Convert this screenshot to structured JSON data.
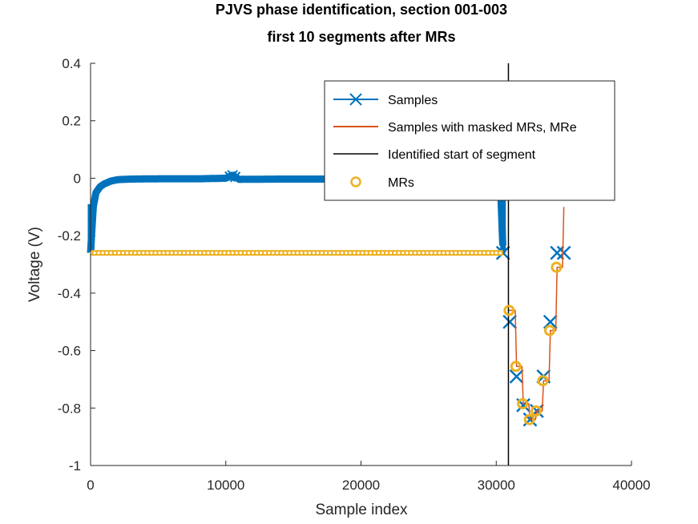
{
  "chart_data": {
    "type": "line",
    "title": [
      "PJVS phase identification, section 001-003",
      "first 10 segments after MRs"
    ],
    "xlabel": "Sample index",
    "ylabel": "Voltage (V)",
    "xlim": [
      0,
      40000
    ],
    "ylim": [
      -1,
      0.4
    ],
    "xticks": [
      0,
      10000,
      20000,
      30000,
      40000
    ],
    "xtick_labels": [
      "0",
      "10000",
      "20000",
      "30000",
      "40000"
    ],
    "yticks": [
      -1,
      -0.8,
      -0.6,
      -0.4,
      -0.2,
      0,
      0.2,
      0.4
    ],
    "ytick_labels": [
      "-1",
      "-0.8",
      "-0.6",
      "-0.4",
      "-0.2",
      "0",
      "0.2",
      "0.4"
    ],
    "grid": false,
    "legend_position": "top-right",
    "colors": {
      "samples": "#0072BD",
      "masked": "#D95319",
      "segment_start": "#000000",
      "mrs": "#EDB120"
    },
    "series": [
      {
        "name": "Samples",
        "marker": "x",
        "description_points": {
          "x": [
            0,
            200,
            400,
            700,
            1000,
            1500,
            2000,
            3000,
            5000,
            8000,
            10000,
            10500,
            11000,
            14000,
            18000,
            22000,
            26000,
            29000,
            30300,
            30500
          ],
          "y": [
            -0.26,
            -0.1,
            -0.05,
            -0.03,
            -0.02,
            -0.01,
            -0.005,
            -0.003,
            -0.002,
            -0.002,
            0.0,
            0.01,
            -0.004,
            -0.003,
            -0.003,
            -0.003,
            -0.003,
            -0.003,
            -0.003,
            -0.26
          ]
        },
        "steps": {
          "x": [
            30500,
            31000,
            31500,
            32000,
            32500,
            33000,
            33500,
            34000,
            34500,
            35000
          ],
          "y": [
            -0.26,
            -0.5,
            -0.69,
            -0.79,
            -0.84,
            -0.81,
            -0.69,
            -0.5,
            -0.26,
            -0.26
          ]
        }
      },
      {
        "name": "Samples with masked MRs, MRe",
        "x": [
          30900,
          31000,
          31400,
          31500,
          31900,
          32000,
          32400,
          32500,
          32900,
          33000,
          33400,
          33500,
          33900,
          34000,
          34400,
          34500,
          34900,
          35000
        ],
        "y": [
          -0.46,
          -0.46,
          -0.46,
          -0.655,
          -0.655,
          -0.785,
          -0.785,
          -0.84,
          -0.84,
          -0.81,
          -0.81,
          -0.705,
          -0.705,
          -0.53,
          -0.53,
          -0.31,
          -0.31,
          -0.1
        ]
      },
      {
        "name": "Identified start of segment",
        "x": [
          30900,
          30900
        ],
        "y": [
          -1,
          0.4
        ]
      },
      {
        "name": "MRs",
        "marker": "o",
        "flat_x_range": [
          0,
          30500
        ],
        "flat_y": -0.26,
        "points": {
          "x": [
            30950,
            31450,
            31950,
            32450,
            32950,
            33450,
            33950,
            34450
          ],
          "y": [
            -0.46,
            -0.655,
            -0.785,
            -0.84,
            -0.81,
            -0.705,
            -0.53,
            -0.31
          ]
        }
      }
    ]
  }
}
